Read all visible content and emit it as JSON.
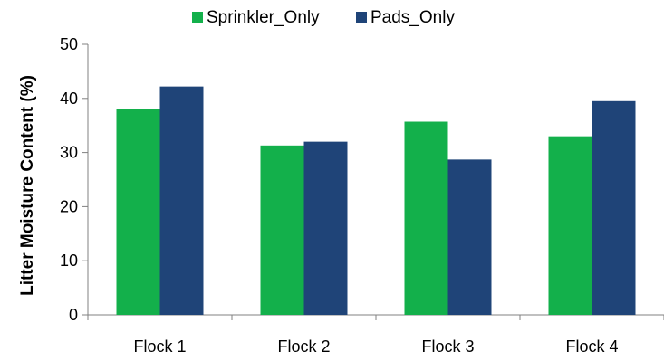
{
  "chart_data": {
    "type": "bar",
    "title": "",
    "xlabel": "",
    "ylabel": "Litter Moisture Content (%)",
    "categories": [
      "Flock 1",
      "Flock 2",
      "Flock 3",
      "Flock 4"
    ],
    "series": [
      {
        "name": "Sprinkler_Only",
        "color": "#13b04b",
        "values": [
          38.0,
          31.3,
          35.7,
          33.0
        ]
      },
      {
        "name": "Pads_Only",
        "color": "#1f4478",
        "values": [
          42.2,
          32.0,
          28.7,
          39.5
        ]
      }
    ],
    "ylim": [
      0,
      50
    ],
    "yticks": [
      "0",
      "10",
      "20",
      "30",
      "40",
      "50"
    ],
    "grid": false,
    "legend_position": "top-center"
  }
}
